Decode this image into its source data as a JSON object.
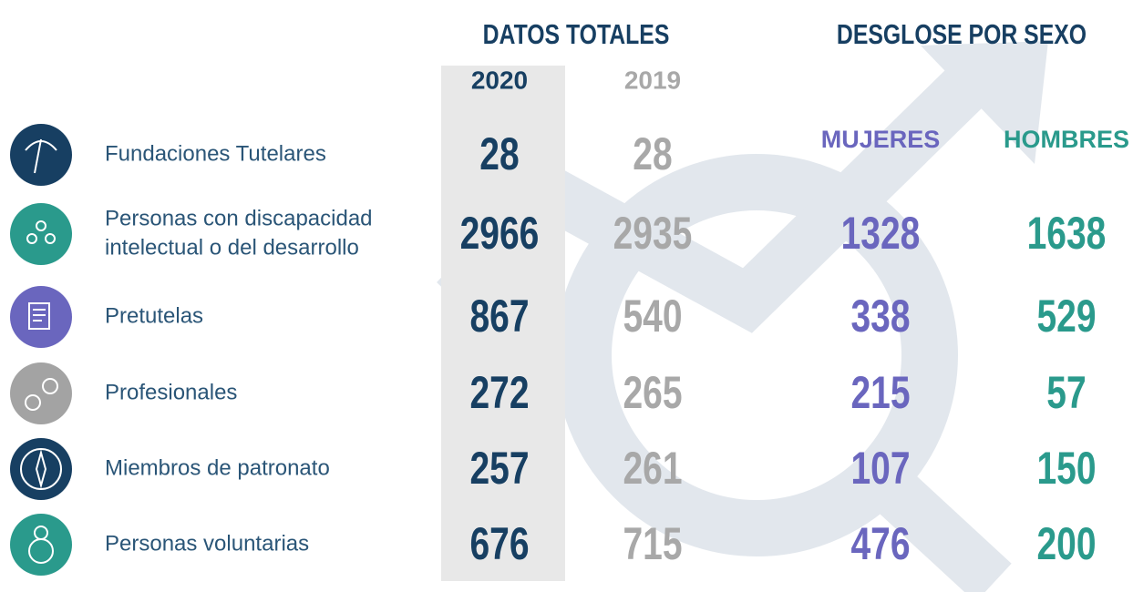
{
  "header": {
    "totals_title": "DATOS TOTALES",
    "breakdown_title": "DESGLOSE POR SEXO",
    "year_current": "2020",
    "year_previous": "2019",
    "women": "MUJERES",
    "men": "HOMBRES"
  },
  "rows": [
    {
      "label_lines": [
        "Fundaciones Tutelares"
      ],
      "y2020": 28,
      "y2019": 28
    },
    {
      "label_lines": [
        "Personas con discapacidad",
        "intelectual o del desarrollo"
      ],
      "y2020": 2966,
      "y2019": 2935,
      "women": 1328,
      "men": 1638
    },
    {
      "label_lines": [
        "Pretutelas"
      ],
      "y2020": 867,
      "y2019": 540,
      "women": 338,
      "men": 529
    },
    {
      "label_lines": [
        "Profesionales"
      ],
      "y2020": 272,
      "y2019": 265,
      "women": 215,
      "men": 57
    },
    {
      "label_lines": [
        "Miembros de patronato"
      ],
      "y2020": 257,
      "y2019": 261,
      "women": 107,
      "men": 150
    },
    {
      "label_lines": [
        "Personas voluntarias"
      ],
      "y2020": 676,
      "y2019": 715,
      "women": 476,
      "men": 200
    }
  ]
}
